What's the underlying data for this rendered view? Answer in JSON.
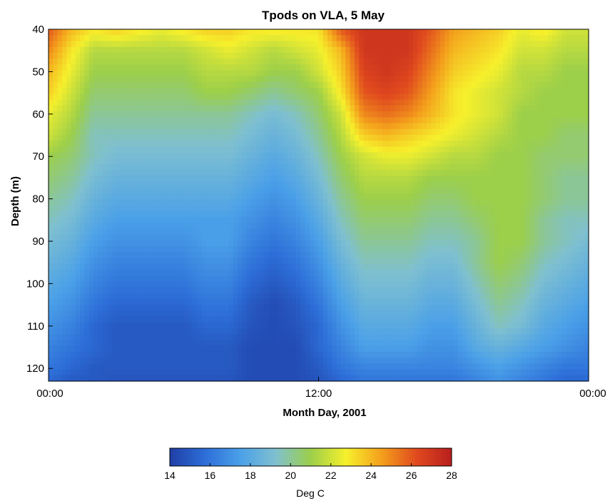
{
  "chart_data": {
    "type": "heatmap",
    "title": "Tpods on VLA, 5 May",
    "xlabel": "Month Day, 2001",
    "ylabel": "Depth (m)",
    "x_ticks": [
      "00:00",
      "12:00",
      "00:00"
    ],
    "x_tick_hours": [
      0,
      12,
      24
    ],
    "xlim_hours": [
      0,
      24
    ],
    "y_ticks": [
      40,
      50,
      60,
      70,
      80,
      90,
      100,
      110,
      120
    ],
    "ylim": [
      40,
      123
    ],
    "y_reversed": true,
    "colorbar": {
      "label": "Deg C",
      "ticks": [
        14,
        16,
        18,
        20,
        22,
        24,
        26,
        28
      ],
      "range": [
        14,
        28
      ],
      "placement": "bottom",
      "colormap": [
        "#1f3fa6",
        "#2d6ed8",
        "#4aa0e8",
        "#7fc0d0",
        "#9ccf4a",
        "#f6f02c",
        "#f4a01c",
        "#e04a1e",
        "#b81e1e"
      ]
    },
    "time_hours": [
      0,
      1,
      2,
      3,
      4,
      5,
      6,
      7,
      8,
      9,
      10,
      11,
      12,
      13,
      14,
      15,
      16,
      17,
      18,
      19,
      20,
      21,
      22,
      23,
      24
    ],
    "depths": [
      40,
      45,
      50,
      55,
      60,
      65,
      70,
      75,
      80,
      85,
      90,
      95,
      100,
      105,
      110,
      115,
      120,
      123
    ],
    "temperature": [
      [
        26,
        24,
        23,
        23.5,
        23,
        22.5,
        23,
        23.5,
        23.5,
        23,
        23,
        23,
        23,
        26,
        27,
        27,
        27,
        26,
        24.5,
        24,
        23.5,
        22.5,
        23,
        22,
        22
      ],
      [
        25,
        23,
        21.5,
        21.5,
        21.5,
        21.5,
        21.5,
        22,
        22.5,
        22,
        21.5,
        22,
        22.5,
        24,
        27,
        27,
        27,
        25.5,
        24,
        23.5,
        23,
        22,
        22,
        21.5,
        21.5
      ],
      [
        24,
        22.5,
        21,
        21,
        21,
        21,
        21,
        21.5,
        21.5,
        21.5,
        21,
        21,
        22,
        23.5,
        26.5,
        27,
        26.5,
        25,
        23.5,
        23,
        22.5,
        21.5,
        21.5,
        21,
        21
      ],
      [
        23.5,
        22,
        20.5,
        20.5,
        20.5,
        20.5,
        20.5,
        21,
        21,
        20.5,
        20,
        20.5,
        21,
        23,
        26,
        26.5,
        26,
        24.5,
        23,
        22.5,
        22,
        21.5,
        21,
        21,
        21
      ],
      [
        22.5,
        21.5,
        20,
        20,
        20,
        20,
        20,
        20,
        20,
        19.5,
        19,
        19.5,
        20.5,
        22,
        25,
        25.5,
        25,
        24,
        23,
        22.5,
        22,
        21,
        21,
        21,
        21
      ],
      [
        22,
        21,
        19.5,
        19.5,
        19.5,
        19.5,
        19.5,
        19.5,
        19.5,
        19,
        18.5,
        19,
        20,
        21.5,
        23.5,
        24,
        23.5,
        23,
        22.5,
        22,
        21.5,
        21,
        21,
        20.5,
        20.5
      ],
      [
        21,
        20.5,
        19.5,
        19,
        19,
        19,
        19,
        19,
        19,
        18.5,
        18,
        18.5,
        19.5,
        21,
        22,
        22.5,
        22.5,
        22,
        21.5,
        21.5,
        21,
        21,
        20.5,
        20.5,
        20.5
      ],
      [
        20.5,
        20,
        19,
        18.5,
        18.5,
        18.5,
        18.5,
        18.5,
        18.5,
        18,
        17.5,
        18,
        19,
        20.5,
        21.5,
        21.5,
        21.5,
        21,
        21,
        21,
        21,
        21,
        20.5,
        20,
        20
      ],
      [
        20,
        19.5,
        18.5,
        18,
        18,
        18,
        18,
        18,
        18,
        17.5,
        17,
        17.5,
        18.5,
        20,
        21,
        21,
        21,
        20.5,
        20.5,
        21,
        21,
        21,
        20.5,
        20,
        20
      ],
      [
        19.5,
        19,
        18,
        17.5,
        17.5,
        17.5,
        17.5,
        17.5,
        17.5,
        17,
        16.5,
        17,
        18,
        19.5,
        20.5,
        20.5,
        20.5,
        20,
        20,
        20.5,
        21,
        21,
        20,
        19.5,
        19.5
      ],
      [
        19,
        18.5,
        17.5,
        17,
        17,
        17,
        17,
        17.5,
        17.5,
        16.5,
        16,
        16.5,
        17.5,
        19,
        20,
        20,
        20,
        19.5,
        19.5,
        20,
        21,
        21,
        20,
        19.5,
        19
      ],
      [
        18.5,
        18,
        17,
        16.5,
        16.5,
        16.5,
        16.5,
        17,
        17,
        16,
        15.5,
        16,
        17,
        18.5,
        19.5,
        19.5,
        19.5,
        19,
        19,
        20,
        21,
        20.5,
        19.5,
        19,
        18.5
      ],
      [
        18,
        17.5,
        16.5,
        16,
        16,
        16,
        16,
        16.5,
        16.5,
        15.5,
        15,
        15.5,
        16.5,
        18,
        19,
        19,
        19,
        18.5,
        18.5,
        19.5,
        20.5,
        20,
        19,
        18.5,
        18
      ],
      [
        17.5,
        17,
        16,
        15.5,
        15.5,
        15.5,
        15.5,
        16,
        16,
        15,
        14.5,
        15,
        16,
        17.5,
        18.5,
        18.5,
        18.5,
        18,
        18,
        19,
        20,
        19.5,
        18.5,
        18,
        17.5
      ],
      [
        17,
        16.5,
        15.5,
        15,
        15,
        15,
        15,
        15.5,
        15.5,
        14.8,
        14.5,
        14.8,
        15.5,
        17,
        18,
        18,
        18,
        17.5,
        17.5,
        18.5,
        19.5,
        19,
        18,
        17.5,
        17
      ],
      [
        16.5,
        16,
        15.5,
        15,
        15,
        15,
        15,
        15,
        15,
        14.5,
        14.5,
        14.5,
        15.5,
        16.5,
        17.5,
        17.5,
        17.5,
        17,
        17,
        18,
        18.5,
        18,
        17.5,
        17,
        16.5
      ],
      [
        16,
        15.5,
        15,
        15,
        15,
        15,
        15,
        15,
        15,
        14.5,
        14.5,
        14.5,
        15,
        16,
        16.5,
        16.5,
        16.5,
        16.5,
        16.5,
        17,
        17.5,
        17,
        16.5,
        16,
        16
      ],
      [
        15.5,
        15,
        15,
        14.8,
        14.8,
        14.8,
        14.8,
        14.8,
        14.8,
        14.5,
        14.5,
        14.5,
        14.8,
        15.5,
        16,
        16,
        16,
        16,
        16,
        16.5,
        17,
        16.5,
        16,
        15.5,
        15.5
      ]
    ]
  }
}
